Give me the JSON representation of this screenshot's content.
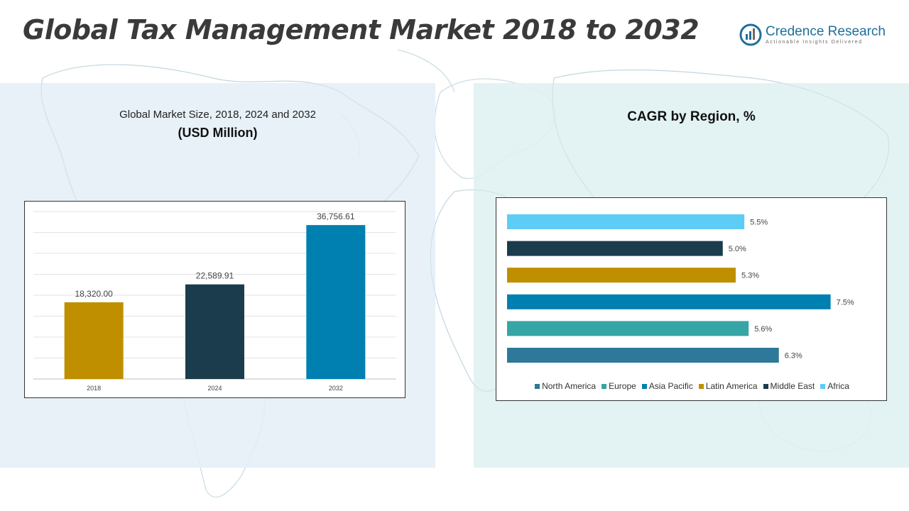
{
  "page": {
    "title": "Global Tax Management Market 2018 to 2032"
  },
  "logo": {
    "name": "Credence Research",
    "tagline": "Actionable Insights Delivered"
  },
  "left_panel": {
    "heading": "Global Market Size, 2018, 2024 and 2032",
    "subheading": "(USD Million)"
  },
  "right_panel": {
    "heading": "CAGR by Region, %"
  },
  "chart_data": [
    {
      "type": "bar",
      "title": "Global Market Size, 2018, 2024 and 2032",
      "ylabel": "(USD Million)",
      "categories": [
        "2018",
        "2024",
        "2032"
      ],
      "values": [
        18320.0,
        22589.91,
        36756.61
      ],
      "data_labels": [
        "18,320.00",
        "22,589.91",
        "36,756.61"
      ],
      "colors": [
        "#bf8f00",
        "#1a3c4d",
        "#0080b0"
      ],
      "ylim": [
        0,
        40000
      ],
      "grid": true
    },
    {
      "type": "bar",
      "orientation": "horizontal",
      "title": "CAGR by Region, %",
      "categories": [
        "North America",
        "Europe",
        "Asia Pacific",
        "Latin America",
        "Middle East",
        "Africa"
      ],
      "values": [
        6.3,
        5.6,
        7.5,
        5.3,
        5.0,
        5.5
      ],
      "data_labels": [
        "6.3%",
        "5.6%",
        "7.5%",
        "5.3%",
        "5.0%",
        "5.5%"
      ],
      "colors": [
        "#2e7899",
        "#35a5a5",
        "#0080b0",
        "#bf8f00",
        "#1a3c4d",
        "#5dcdf5"
      ],
      "xlim": [
        0,
        8
      ],
      "grid": false,
      "legend": "bottom"
    }
  ]
}
